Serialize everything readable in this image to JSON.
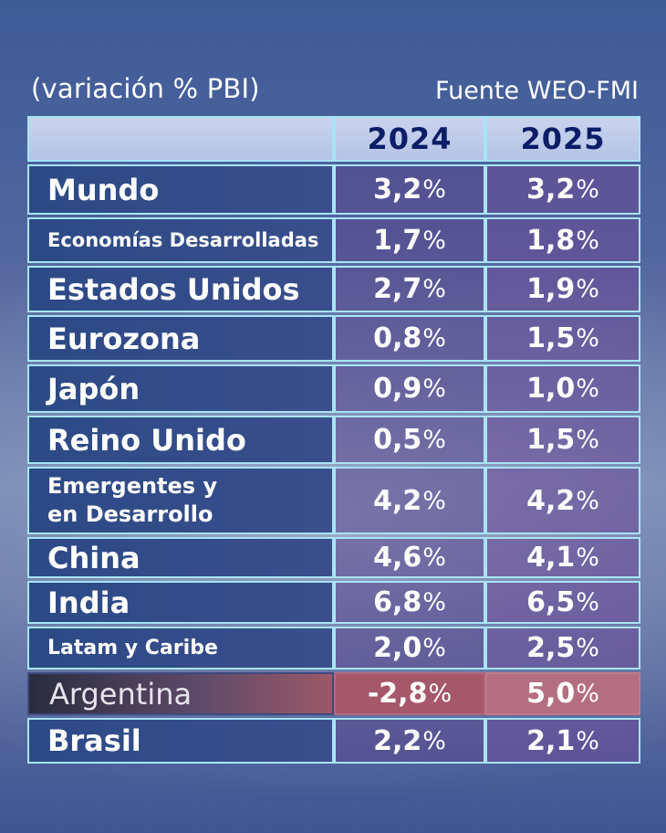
{
  "header": {
    "caption": "(variación % PBI)",
    "source": "Fuente WEO-FMI"
  },
  "table": {
    "columns": [
      "2024",
      "2025"
    ],
    "rows": [
      {
        "name": "Mundo",
        "v2024": "3,2",
        "v2025": "3,2"
      },
      {
        "name": "Economías Desarrolladas",
        "v2024": "1,7",
        "v2025": "1,8"
      },
      {
        "name": "Estados Unidos",
        "v2024": "2,7",
        "v2025": "1,9"
      },
      {
        "name": "Eurozona",
        "v2024": "0,8",
        "v2025": "1,5"
      },
      {
        "name": "Japón",
        "v2024": "0,9",
        "v2025": "1,0"
      },
      {
        "name": "Reino Unido",
        "v2024": "0,5",
        "v2025": "1,5"
      },
      {
        "name": "Emergentes y en Desarrollo",
        "v2024": "4,2",
        "v2025": "4,2"
      },
      {
        "name": "China",
        "v2024": "4,6",
        "v2025": "4,1"
      },
      {
        "name": "India",
        "v2024": "6,8",
        "v2025": "6,5"
      },
      {
        "name": "Latam y Caribe",
        "v2024": "2,0",
        "v2025": "2,5"
      },
      {
        "name": "Argentina",
        "v2024": "-2,8",
        "v2025": "5,0"
      },
      {
        "name": "Brasil",
        "v2024": "2,2",
        "v2025": "2,1"
      }
    ],
    "unit": "%"
  },
  "colors": {
    "header_year": "#0b1d66",
    "grid_border": "#a8e4f5",
    "highlight_row": "#a4586a"
  }
}
